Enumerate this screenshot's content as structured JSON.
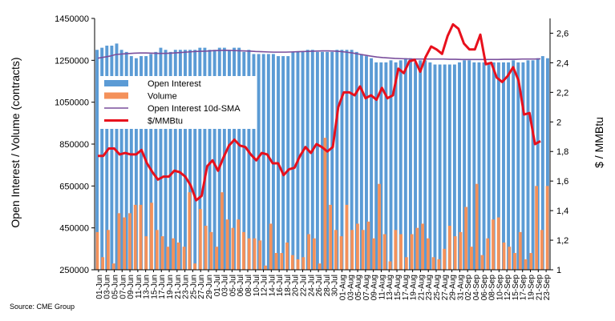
{
  "chart_data": {
    "type": "bar",
    "left_axis_title": "Open Interest / Volume (contracts)",
    "right_axis_title": "$ / MMBtu",
    "source": "Source: CME Group",
    "ylim_left": [
      250000,
      1450000
    ],
    "yticks_left": [
      "250000",
      "450000",
      "650000",
      "850000",
      "1050000",
      "1250000",
      "1450000"
    ],
    "yticks_left_values": [
      250000,
      450000,
      650000,
      850000,
      1050000,
      1250000,
      1450000
    ],
    "ylim_right": [
      1.0,
      2.7
    ],
    "yticks_right": [
      "1",
      "1,2",
      "1,4",
      "1,6",
      "1,8",
      "2",
      "2,2",
      "2,4",
      "2,6"
    ],
    "yticks_right_values": [
      1.0,
      1.2,
      1.4,
      1.6,
      1.8,
      2.0,
      2.2,
      2.4,
      2.6
    ],
    "x_tick_labels": [
      "01-Jun",
      "03-Jun",
      "05-Jun",
      "07-Jun",
      "09-Jun",
      "11-Jun",
      "13-Jun",
      "15-Jun",
      "17-Jun",
      "19-Jun",
      "21-Jun",
      "23-Jun",
      "25-Jun",
      "27-Jun",
      "29-Jun",
      "01-Jul",
      "03-Jul",
      "05-Jul",
      "06-Jul",
      "08-Jul",
      "10-Jul",
      "12-Jul",
      "14-Jul",
      "16-Jul",
      "18-Jul",
      "20-Jul",
      "22-Jul",
      "24-Jul",
      "26-Jul",
      "28-Jul",
      "30-Jul",
      "01-Aug",
      "03-Aug",
      "05-Aug",
      "07-Aug",
      "09-Aug",
      "11-Aug",
      "13-Aug",
      "15-Aug",
      "17-Aug",
      "19-Aug",
      "21-Aug",
      "23-Aug",
      "25-Aug",
      "27-Aug",
      "29-Aug",
      "31-Aug",
      "02-Sep",
      "04-Sep",
      "06-Sep",
      "08-Sep",
      "10-Sep",
      "12-Sep",
      "15-Sep",
      "17-Sep",
      "19-Sep",
      "21-Sep",
      "23-Sep"
    ],
    "legend": [
      {
        "name": "Open Interest",
        "color": "#5b9bd5"
      },
      {
        "name": "Volume",
        "color": "#f4915a"
      },
      {
        "name": "Open Interest 10d-SMA",
        "color": "#7a4e9c"
      },
      {
        "name": "$/MMBtu",
        "color": "#e8101c"
      }
    ],
    "colors": {
      "open_interest": "#5b9bd5",
      "volume": "#f4915a",
      "sma": "#7a4e9c",
      "price": "#e8101c"
    },
    "series": [
      {
        "name": "Open Interest",
        "axis": "left",
        "values": [
          1300000,
          1310000,
          1320000,
          1320000,
          1330000,
          1300000,
          1290000,
          1270000,
          1260000,
          1270000,
          1270000,
          1280000,
          1290000,
          1310000,
          1300000,
          1290000,
          1300000,
          1300000,
          1300000,
          1300000,
          1300000,
          1310000,
          1310000,
          1300000,
          1300000,
          1310000,
          1310000,
          1300000,
          1310000,
          1310000,
          1290000,
          1300000,
          1280000,
          1280000,
          1280000,
          1280000,
          1280000,
          1270000,
          1270000,
          1270000,
          1290000,
          1290000,
          1290000,
          1300000,
          1300000,
          1290000,
          1290000,
          1290000,
          1290000,
          1300000,
          1300000,
          1300000,
          1300000,
          1290000,
          1280000,
          1270000,
          1260000,
          1240000,
          1240000,
          1240000,
          1250000,
          1240000,
          1250000,
          1260000,
          1260000,
          1240000,
          1250000,
          1250000,
          1240000,
          1230000,
          1230000,
          1230000,
          1230000,
          1230000,
          1240000,
          1250000,
          1250000,
          1240000,
          1240000,
          1240000,
          1240000,
          1240000,
          1240000,
          1240000,
          1240000,
          1250000,
          1240000,
          1240000,
          1250000,
          1250000,
          1260000,
          1270000,
          1260000
        ]
      },
      {
        "name": "Volume",
        "axis": "left",
        "values": [
          430000,
          310000,
          440000,
          280000,
          520000,
          500000,
          520000,
          560000,
          560000,
          410000,
          570000,
          440000,
          410000,
          360000,
          400000,
          380000,
          360000,
          620000,
          280000,
          540000,
          460000,
          430000,
          360000,
          620000,
          490000,
          450000,
          490000,
          430000,
          400000,
          400000,
          390000,
          270000,
          470000,
          330000,
          330000,
          380000,
          320000,
          300000,
          310000,
          420000,
          400000,
          280000,
          880000,
          560000,
          440000,
          410000,
          560000,
          440000,
          470000,
          440000,
          480000,
          400000,
          660000,
          420000,
          290000,
          440000,
          420000,
          310000,
          420000,
          450000,
          470000,
          400000,
          310000,
          300000,
          350000,
          460000,
          410000,
          430000,
          550000,
          360000,
          660000,
          320000,
          400000,
          490000,
          500000,
          380000,
          360000,
          330000,
          430000,
          300000,
          330000,
          650000,
          440000,
          650000
        ]
      },
      {
        "name": "Open Interest 10d-SMA",
        "axis": "left",
        "values": [
          1260000,
          1265000,
          1270000,
          1278000,
          1280000,
          1282000,
          1284000,
          1285000,
          1285000,
          1284000,
          1283000,
          1283000,
          1284000,
          1286000,
          1288000,
          1290000,
          1292000,
          1293000,
          1294000,
          1296000,
          1297000,
          1298000,
          1297000,
          1296000,
          1295000,
          1294000,
          1292000,
          1291000,
          1290000,
          1289000,
          1289000,
          1289000,
          1290000,
          1291000,
          1292000,
          1293000,
          1294000,
          1295000,
          1295000,
          1294000,
          1292000,
          1289000,
          1285000,
          1280000,
          1275000,
          1270000,
          1266000,
          1263000,
          1261000,
          1259000,
          1258000,
          1257000,
          1256000,
          1256000,
          1256000,
          1256000,
          1256000,
          1256000,
          1255000,
          1255000,
          1254000,
          1254000,
          1254000,
          1254000,
          1254000,
          1254000,
          1254000,
          1255000,
          1255000,
          1255000,
          1256000,
          1256000,
          1256000,
          1257000
        ]
      },
      {
        "name": "$/MMBtu",
        "axis": "right",
        "values": [
          1.77,
          1.77,
          1.82,
          1.82,
          1.78,
          1.79,
          1.78,
          1.78,
          1.81,
          1.72,
          1.66,
          1.61,
          1.63,
          1.63,
          1.67,
          1.66,
          1.63,
          1.57,
          1.47,
          1.5,
          1.7,
          1.74,
          1.67,
          1.76,
          1.84,
          1.88,
          1.84,
          1.83,
          1.78,
          1.74,
          1.79,
          1.78,
          1.72,
          1.72,
          1.64,
          1.68,
          1.69,
          1.77,
          1.83,
          1.79,
          1.85,
          1.83,
          1.8,
          1.83,
          2.1,
          2.2,
          2.2,
          2.18,
          2.24,
          2.16,
          2.18,
          2.15,
          2.23,
          2.16,
          2.18,
          2.36,
          2.33,
          2.41,
          2.42,
          2.34,
          2.44,
          2.51,
          2.49,
          2.46,
          2.58,
          2.66,
          2.63,
          2.53,
          2.49,
          2.49,
          2.59,
          2.39,
          2.4,
          2.3,
          2.27,
          2.31,
          2.37,
          2.28,
          2.05,
          2.06,
          1.85,
          1.87
        ]
      }
    ]
  }
}
